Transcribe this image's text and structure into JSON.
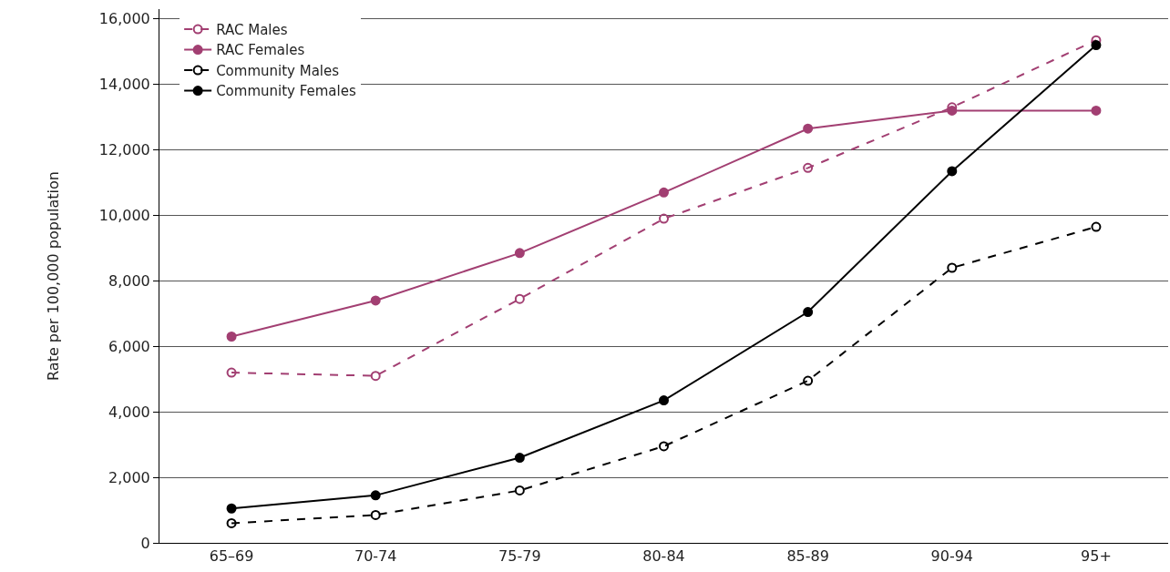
{
  "chart_data": {
    "type": "line",
    "ylabel": "Rate per 100,000 population",
    "categories": [
      "65–69",
      "70-74",
      "75-79",
      "80-84",
      "85-89",
      "90-94",
      "95+"
    ],
    "series": [
      {
        "name": "RAC Males",
        "color": "#a23f72",
        "line_style": "dashed",
        "values": [
          5200,
          5100,
          7450,
          9900,
          11450,
          13300,
          15350
        ]
      },
      {
        "name": "RAC Females",
        "color": "#a23f72",
        "line_style": "solid",
        "values": [
          6300,
          7400,
          8850,
          10700,
          12650,
          13200,
          13200
        ]
      },
      {
        "name": "Community Males",
        "color": "#000000",
        "line_style": "dashed",
        "values": [
          600,
          850,
          1600,
          2950,
          4950,
          8400,
          9650
        ]
      },
      {
        "name": "Community Females",
        "color": "#000000",
        "line_style": "solid",
        "values": [
          1050,
          1450,
          2600,
          4350,
          7050,
          11350,
          15200
        ]
      }
    ],
    "ylim": [
      0,
      16300
    ],
    "yticks": [
      {
        "value": 0,
        "label": "0"
      },
      {
        "value": 2000,
        "label": "2,000"
      },
      {
        "value": 4000,
        "label": "4,000"
      },
      {
        "value": 6000,
        "label": "6,000"
      },
      {
        "value": 8000,
        "label": "8,000"
      },
      {
        "value": 10000,
        "label": "10,000"
      },
      {
        "value": 12000,
        "label": "12,000"
      },
      {
        "value": 14000,
        "label": "14,000"
      },
      {
        "value": 16000,
        "label": "16,000"
      }
    ],
    "grid": "y",
    "legend": "top left",
    "marker": "circle"
  }
}
